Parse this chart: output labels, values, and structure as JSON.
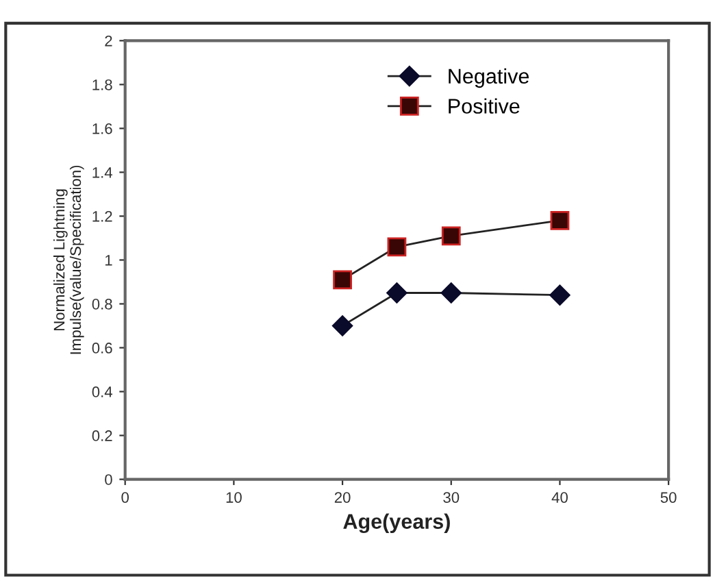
{
  "chart_data": {
    "type": "line",
    "xlabel": "Age(years)",
    "ylabel": "Normalized Lightning\nImpulse(value/Specification)",
    "xlim": [
      0,
      50
    ],
    "xticks": [
      0,
      10,
      20,
      30,
      40,
      50
    ],
    "ylim": [
      0,
      2
    ],
    "yticks": [
      0,
      0.2,
      0.4,
      0.6,
      0.8,
      1,
      1.2,
      1.4,
      1.6,
      1.8,
      2
    ],
    "grid": false,
    "legend": "top",
    "line_style": "solid",
    "series": [
      {
        "name": "Negative",
        "color": "#0a0a2a",
        "marker": "diamond",
        "x": [
          20,
          25,
          30,
          40
        ],
        "values": [
          0.7,
          0.85,
          0.85,
          0.84
        ]
      },
      {
        "name": "Positive",
        "color": "#3a0505",
        "marker": "square",
        "x": [
          20,
          25,
          30,
          40
        ],
        "values": [
          0.91,
          1.06,
          1.11,
          1.18
        ]
      }
    ]
  }
}
